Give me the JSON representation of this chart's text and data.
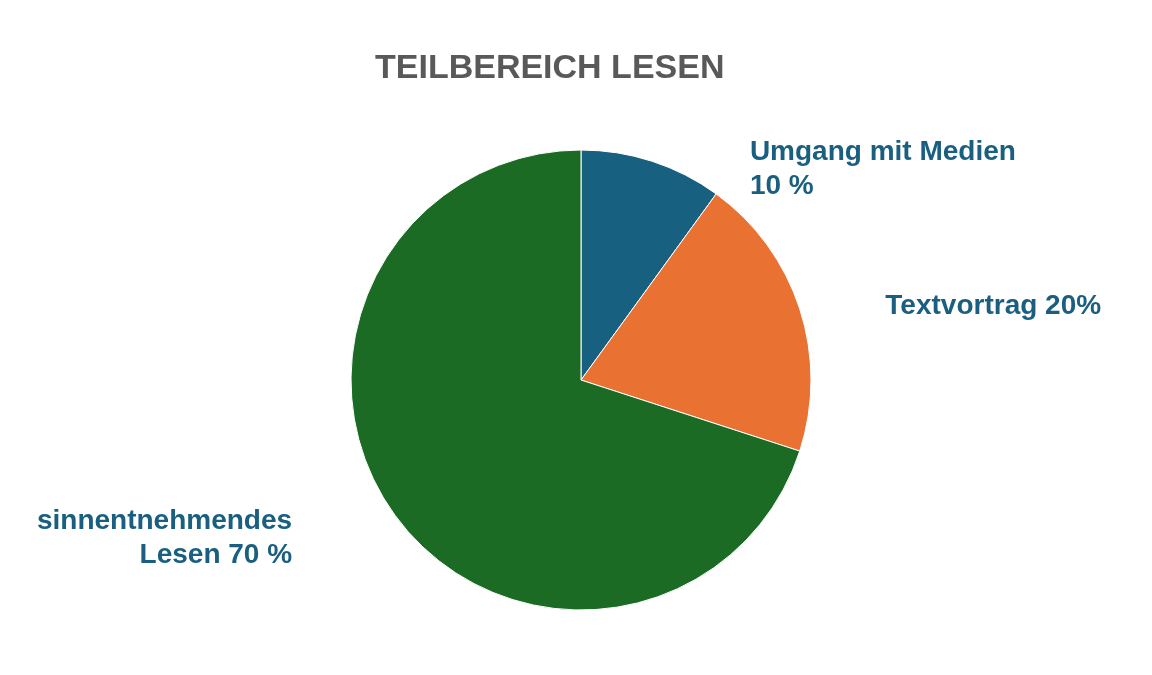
{
  "chart_data": {
    "type": "pie",
    "title": "TEILBEREICH LESEN",
    "categories": [
      "Umgang mit Medien",
      "Textvortrag",
      "sinnentnehmendes Lesen"
    ],
    "values": [
      10,
      20,
      70
    ],
    "colors": [
      "#17607f",
      "#e97132",
      "#1b6b25"
    ],
    "value_labels": [
      "10 %",
      "20%",
      "70 %"
    ],
    "legend": false
  }
}
